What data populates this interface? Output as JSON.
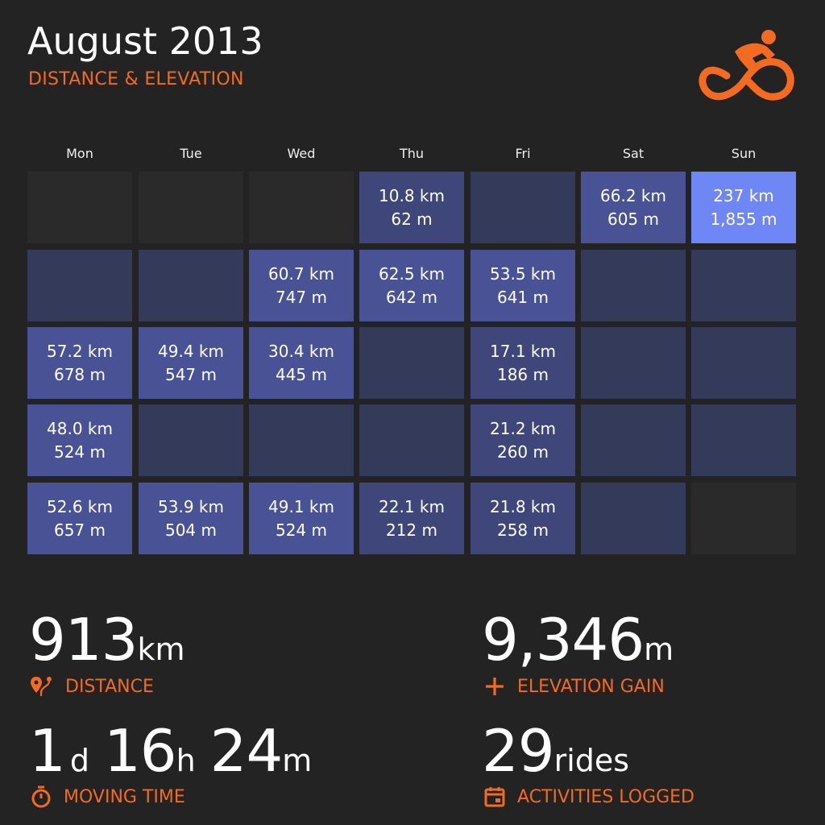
{
  "header": {
    "title": "August 2013",
    "subtitle": "DISTANCE & ELEVATION"
  },
  "colors": {
    "accent": "#f26b21",
    "background": "#232323",
    "empty_cell": "#2a2a2a",
    "low": "#343a5a",
    "mid": "#4a5296",
    "high": "#6f86f5"
  },
  "calendar": {
    "days": [
      "Mon",
      "Tue",
      "Wed",
      "Thu",
      "Fri",
      "Sat",
      "Sun"
    ],
    "weeks": [
      [
        {
          "state": "empty"
        },
        {
          "state": "empty"
        },
        {
          "state": "empty"
        },
        {
          "state": "active",
          "distance": "10.8 km",
          "elevation": "62 m"
        },
        {
          "state": "rest"
        },
        {
          "state": "active",
          "distance": "66.2 km",
          "elevation": "605 m"
        },
        {
          "state": "peak",
          "distance": "237 km",
          "elevation": "1,855 m"
        }
      ],
      [
        {
          "state": "rest"
        },
        {
          "state": "rest"
        },
        {
          "state": "active",
          "distance": "60.7 km",
          "elevation": "747 m"
        },
        {
          "state": "active",
          "distance": "62.5 km",
          "elevation": "642 m"
        },
        {
          "state": "active",
          "distance": "53.5 km",
          "elevation": "641 m"
        },
        {
          "state": "rest"
        },
        {
          "state": "rest"
        }
      ],
      [
        {
          "state": "active",
          "distance": "57.2 km",
          "elevation": "678 m"
        },
        {
          "state": "active",
          "distance": "49.4 km",
          "elevation": "547 m"
        },
        {
          "state": "active",
          "distance": "30.4 km",
          "elevation": "445 m"
        },
        {
          "state": "rest"
        },
        {
          "state": "active",
          "distance": "17.1 km",
          "elevation": "186 m"
        },
        {
          "state": "rest"
        },
        {
          "state": "rest"
        }
      ],
      [
        {
          "state": "active",
          "distance": "48.0 km",
          "elevation": "524 m"
        },
        {
          "state": "rest"
        },
        {
          "state": "rest"
        },
        {
          "state": "rest"
        },
        {
          "state": "active",
          "distance": "21.2 km",
          "elevation": "260 m"
        },
        {
          "state": "rest"
        },
        {
          "state": "rest"
        }
      ],
      [
        {
          "state": "active",
          "distance": "52.6 km",
          "elevation": "657 m"
        },
        {
          "state": "active",
          "distance": "53.9 km",
          "elevation": "504 m"
        },
        {
          "state": "active",
          "distance": "49.1 km",
          "elevation": "524 m"
        },
        {
          "state": "active",
          "distance": "22.1 km",
          "elevation": "212 m"
        },
        {
          "state": "active",
          "distance": "21.8 km",
          "elevation": "258 m"
        },
        {
          "state": "rest"
        },
        {
          "state": "empty"
        }
      ]
    ]
  },
  "stats": {
    "distance": {
      "value": "913",
      "unit": "km",
      "label": "DISTANCE",
      "icon": "route-pin-icon"
    },
    "elevation": {
      "value": "9,346",
      "unit": "m",
      "label": "ELEVATION GAIN",
      "icon": "plus-icon"
    },
    "moving_time": {
      "days": "1",
      "days_unit": "d",
      "hours": "16",
      "hours_unit": "h",
      "minutes": "24",
      "minutes_unit": "m",
      "label": "MOVING TIME",
      "icon": "stopwatch-icon"
    },
    "rides": {
      "value": "29",
      "unit": "rides",
      "label": "ACTIVITIES LOGGED",
      "icon": "calendar-icon"
    }
  }
}
